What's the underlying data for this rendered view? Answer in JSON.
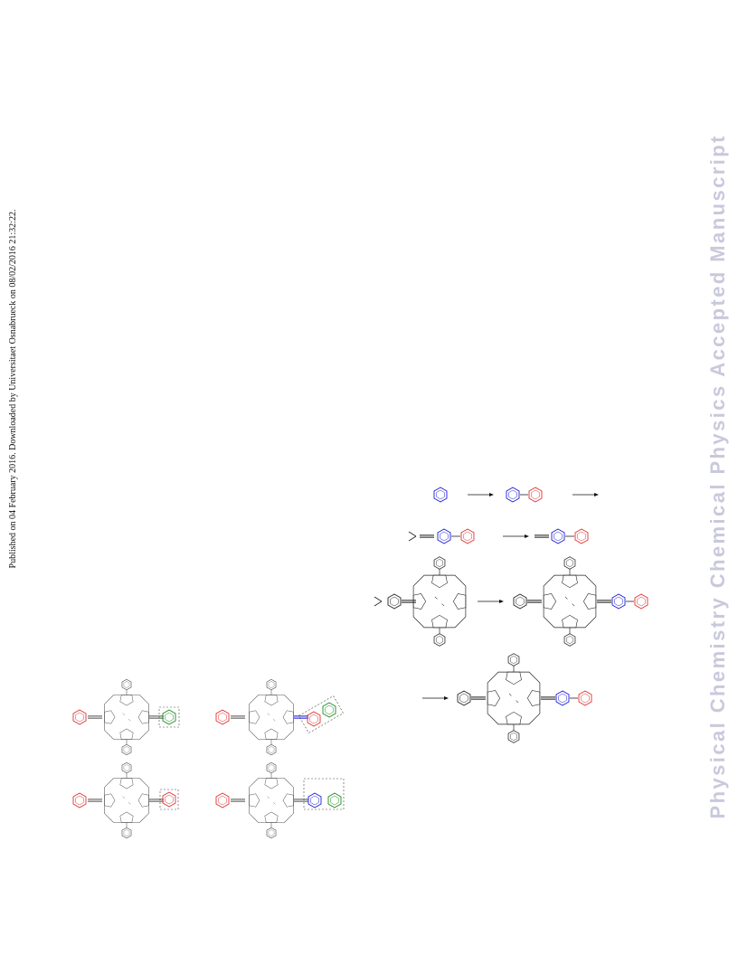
{
  "watermark": {
    "published": "Published on 04 February 2016. Downloaded by Universitaet Osnabrueck on 08/02/2016 21:32:22.",
    "journal": "Physical Chemistry Chemical Physics Accepted Manuscript"
  }
}
